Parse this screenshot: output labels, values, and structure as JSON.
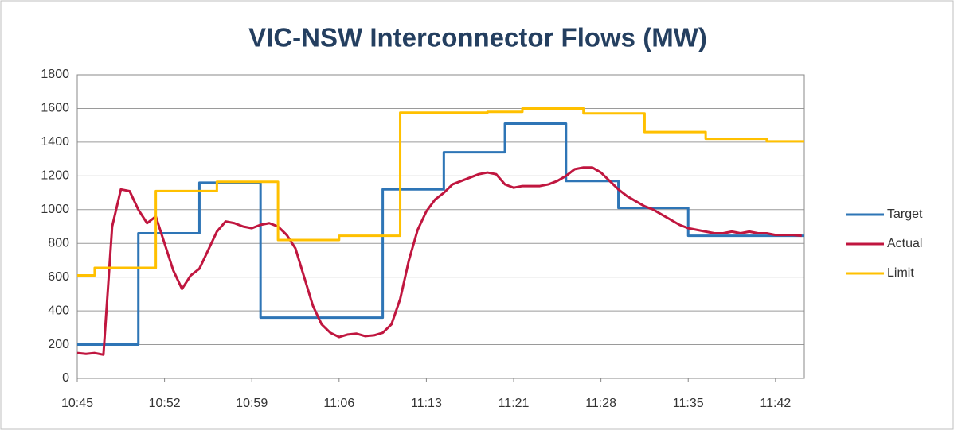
{
  "chart_data": {
    "type": "line",
    "title": "VIC-NSW Interconnector Flows (MW)",
    "categories": [
      "10:45",
      null,
      null,
      null,
      null,
      null,
      null,
      null,
      null,
      null,
      "10:52",
      null,
      null,
      null,
      null,
      null,
      null,
      null,
      null,
      null,
      "10:59",
      null,
      null,
      null,
      null,
      null,
      null,
      null,
      null,
      null,
      "11:06",
      null,
      null,
      null,
      null,
      null,
      null,
      null,
      null,
      null,
      "11:13",
      null,
      null,
      null,
      null,
      null,
      null,
      null,
      null,
      null,
      "11:21",
      null,
      null,
      null,
      null,
      null,
      null,
      null,
      null,
      null,
      "11:28",
      null,
      null,
      null,
      null,
      null,
      null,
      null,
      null,
      null,
      "11:35",
      null,
      null,
      null,
      null,
      null,
      null,
      null,
      null,
      null,
      "11:42",
      null,
      null,
      null
    ],
    "series": [
      {
        "name": "Target",
        "color": "#2e75b6",
        "step": true,
        "values": [
          200,
          200,
          200,
          200,
          200,
          200,
          200,
          860,
          860,
          860,
          860,
          860,
          860,
          860,
          1160,
          1160,
          1160,
          1160,
          1160,
          1160,
          1160,
          360,
          360,
          360,
          360,
          360,
          360,
          360,
          360,
          360,
          360,
          360,
          360,
          360,
          360,
          1120,
          1120,
          1120,
          1120,
          1120,
          1120,
          1120,
          1340,
          1340,
          1340,
          1340,
          1340,
          1340,
          1340,
          1510,
          1510,
          1510,
          1510,
          1510,
          1510,
          1510,
          1170,
          1170,
          1170,
          1170,
          1170,
          1170,
          1010,
          1010,
          1010,
          1010,
          1010,
          1010,
          1010,
          1010,
          845,
          845,
          845,
          845,
          845,
          845,
          845,
          845,
          845,
          845,
          845,
          845,
          845,
          845
        ]
      },
      {
        "name": "Actual",
        "color": "#c0163f",
        "step": false,
        "values": [
          150,
          145,
          150,
          140,
          900,
          1120,
          1110,
          1000,
          920,
          960,
          800,
          640,
          530,
          610,
          650,
          760,
          870,
          930,
          920,
          900,
          890,
          910,
          920,
          900,
          850,
          770,
          600,
          430,
          320,
          270,
          245,
          260,
          265,
          250,
          255,
          270,
          320,
          470,
          700,
          880,
          990,
          1060,
          1100,
          1150,
          1170,
          1190,
          1210,
          1220,
          1210,
          1150,
          1130,
          1140,
          1140,
          1140,
          1150,
          1170,
          1200,
          1240,
          1250,
          1250,
          1220,
          1170,
          1120,
          1080,
          1050,
          1020,
          1000,
          970,
          940,
          910,
          890,
          880,
          870,
          860,
          860,
          870,
          860,
          870,
          860,
          860,
          850,
          850,
          850,
          845
        ]
      },
      {
        "name": "Limit",
        "color": "#ffc000",
        "step": true,
        "values": [
          610,
          610,
          655,
          655,
          655,
          655,
          655,
          655,
          655,
          1110,
          1110,
          1110,
          1110,
          1110,
          1110,
          1110,
          1165,
          1165,
          1165,
          1165,
          1165,
          1165,
          1165,
          820,
          820,
          820,
          820,
          820,
          820,
          820,
          845,
          845,
          845,
          845,
          845,
          845,
          845,
          1575,
          1575,
          1575,
          1575,
          1575,
          1575,
          1575,
          1575,
          1575,
          1575,
          1580,
          1580,
          1580,
          1580,
          1600,
          1600,
          1600,
          1600,
          1600,
          1600,
          1600,
          1570,
          1570,
          1570,
          1570,
          1570,
          1570,
          1570,
          1460,
          1460,
          1460,
          1460,
          1460,
          1460,
          1460,
          1420,
          1420,
          1420,
          1420,
          1420,
          1420,
          1420,
          1405,
          1405,
          1405,
          1405,
          1405
        ]
      }
    ],
    "ylim": [
      0,
      1800
    ],
    "yticks": [
      0,
      200,
      400,
      600,
      800,
      1000,
      1200,
      1400,
      1600,
      1800
    ],
    "grid": true,
    "legend": "right"
  }
}
